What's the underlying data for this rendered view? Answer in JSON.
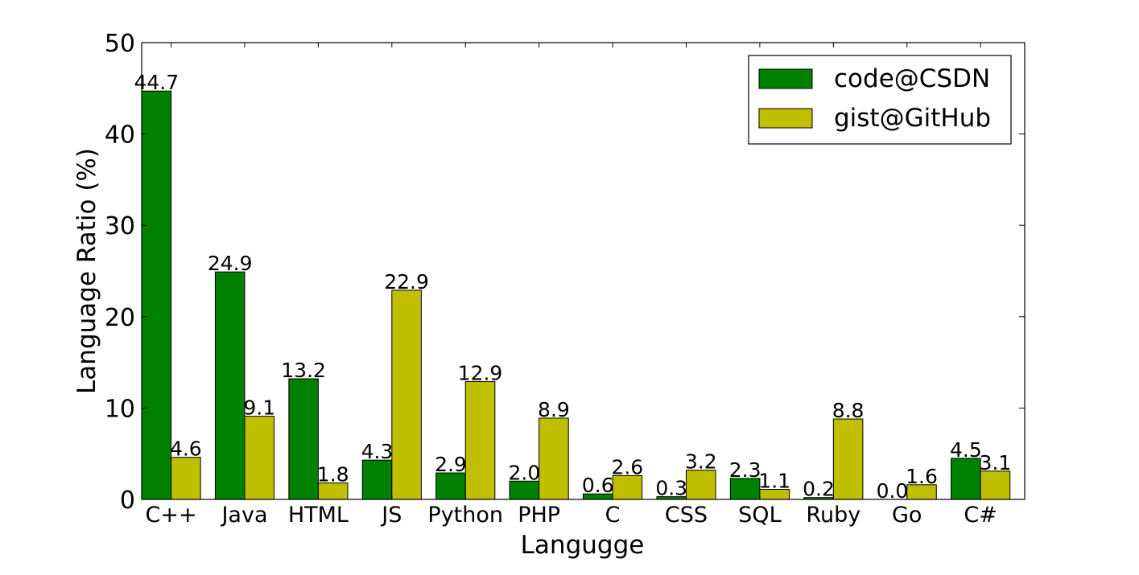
{
  "chart_data": {
    "type": "bar",
    "xlabel": "Langugge",
    "ylabel": "Language Ratio (%)",
    "ylim": [
      0,
      50
    ],
    "yticks": [
      0,
      10,
      20,
      30,
      40,
      50
    ],
    "legend_position": "top-right",
    "categories": [
      "C++",
      "Java",
      "HTML",
      "JS",
      "Python",
      "PHP",
      "C",
      "CSS",
      "SQL",
      "Ruby",
      "Go",
      "C#"
    ],
    "series": [
      {
        "name": "code@CSDN",
        "color": "#008000",
        "values": [
          44.7,
          24.9,
          13.2,
          4.3,
          2.9,
          2.0,
          0.6,
          0.3,
          2.3,
          0.2,
          0.0,
          4.5
        ],
        "labels": [
          "44.7",
          "24.9",
          "13.2",
          "4.3",
          "2.9",
          "2.0",
          "0.6",
          "0.3",
          "2.3",
          "0.2",
          "0.0",
          "4.5"
        ]
      },
      {
        "name": "gist@GitHub",
        "color": "#bfbf00",
        "values": [
          4.6,
          9.1,
          1.8,
          22.9,
          12.9,
          8.9,
          2.6,
          3.2,
          1.1,
          8.8,
          1.6,
          3.1
        ],
        "labels": [
          "4.6",
          "9.1",
          "1.8",
          "22.9",
          "12.9",
          "8.9",
          "2.6",
          "3.2",
          "1.1",
          "8.8",
          "1.6",
          "3.1"
        ]
      }
    ]
  }
}
